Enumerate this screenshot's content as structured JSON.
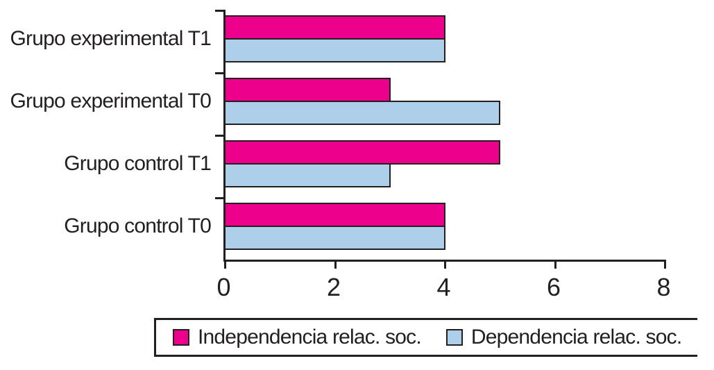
{
  "figure": {
    "background": "#FFFFFF",
    "ink_color": "#231F20"
  },
  "chart_data": {
    "type": "bar",
    "orientation": "horizontal",
    "title": "",
    "xlabel": "",
    "ylabel": "",
    "categories": [
      "Grupo experimental T1",
      "Grupo experimental T0",
      "Grupo control T1",
      "Grupo control T0"
    ],
    "series": [
      {
        "name": "Independencia relac. soc.",
        "color": "#EC008C",
        "values": [
          4,
          3,
          5,
          4
        ]
      },
      {
        "name": "Dependencia relac. soc.",
        "color": "#ADCFEA",
        "values": [
          4,
          5,
          3,
          4
        ]
      }
    ],
    "xlim": [
      0,
      8
    ],
    "x_ticks": [
      0,
      2,
      4,
      6,
      8
    ],
    "grid": false,
    "bar_border_color": "#231F20",
    "legend_position": "bottom"
  },
  "legend": {
    "items": [
      {
        "label": "Independencia relac. soc.",
        "color": "#EC008C"
      },
      {
        "label": "Dependencia relac. soc.",
        "color": "#ADCFEA"
      }
    ]
  }
}
